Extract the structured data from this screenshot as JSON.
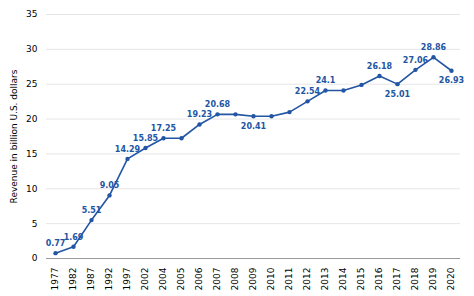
{
  "chart_data": {
    "type": "line",
    "ylabel": "Revenue in billion U.S. dollars",
    "categories": [
      "1977",
      "1982",
      "1987",
      "1992",
      "1997",
      "2002",
      "2004",
      "2005",
      "2006",
      "2007",
      "2008",
      "2009",
      "2010",
      "2011",
      "2012",
      "2013",
      "2014",
      "2015",
      "2016",
      "2017",
      "2018",
      "2019",
      "2020"
    ],
    "values": [
      0.77,
      1.69,
      5.51,
      9.05,
      14.29,
      15.85,
      17.25,
      17.25,
      19.23,
      20.68,
      20.68,
      20.41,
      20.41,
      21.0,
      22.54,
      24.1,
      24.1,
      24.9,
      26.18,
      25.01,
      27.06,
      28.86,
      26.93
    ],
    "value_labels": [
      "0.77",
      "1.69",
      "5.51",
      "9.05",
      "14.29",
      "15.85",
      "17.25",
      null,
      "19.23",
      "20.68",
      null,
      "20.41",
      null,
      null,
      "22.54",
      "24.1",
      null,
      null,
      "26.18",
      "25.01",
      "27.06",
      "28.86",
      "26.93"
    ],
    "data_labels": true,
    "color": "#2255a4",
    "marker": "circle",
    "ylim": [
      0,
      35
    ],
    "yticks": [
      0,
      5,
      10,
      15,
      20,
      25,
      30,
      35
    ],
    "grid": true
  }
}
